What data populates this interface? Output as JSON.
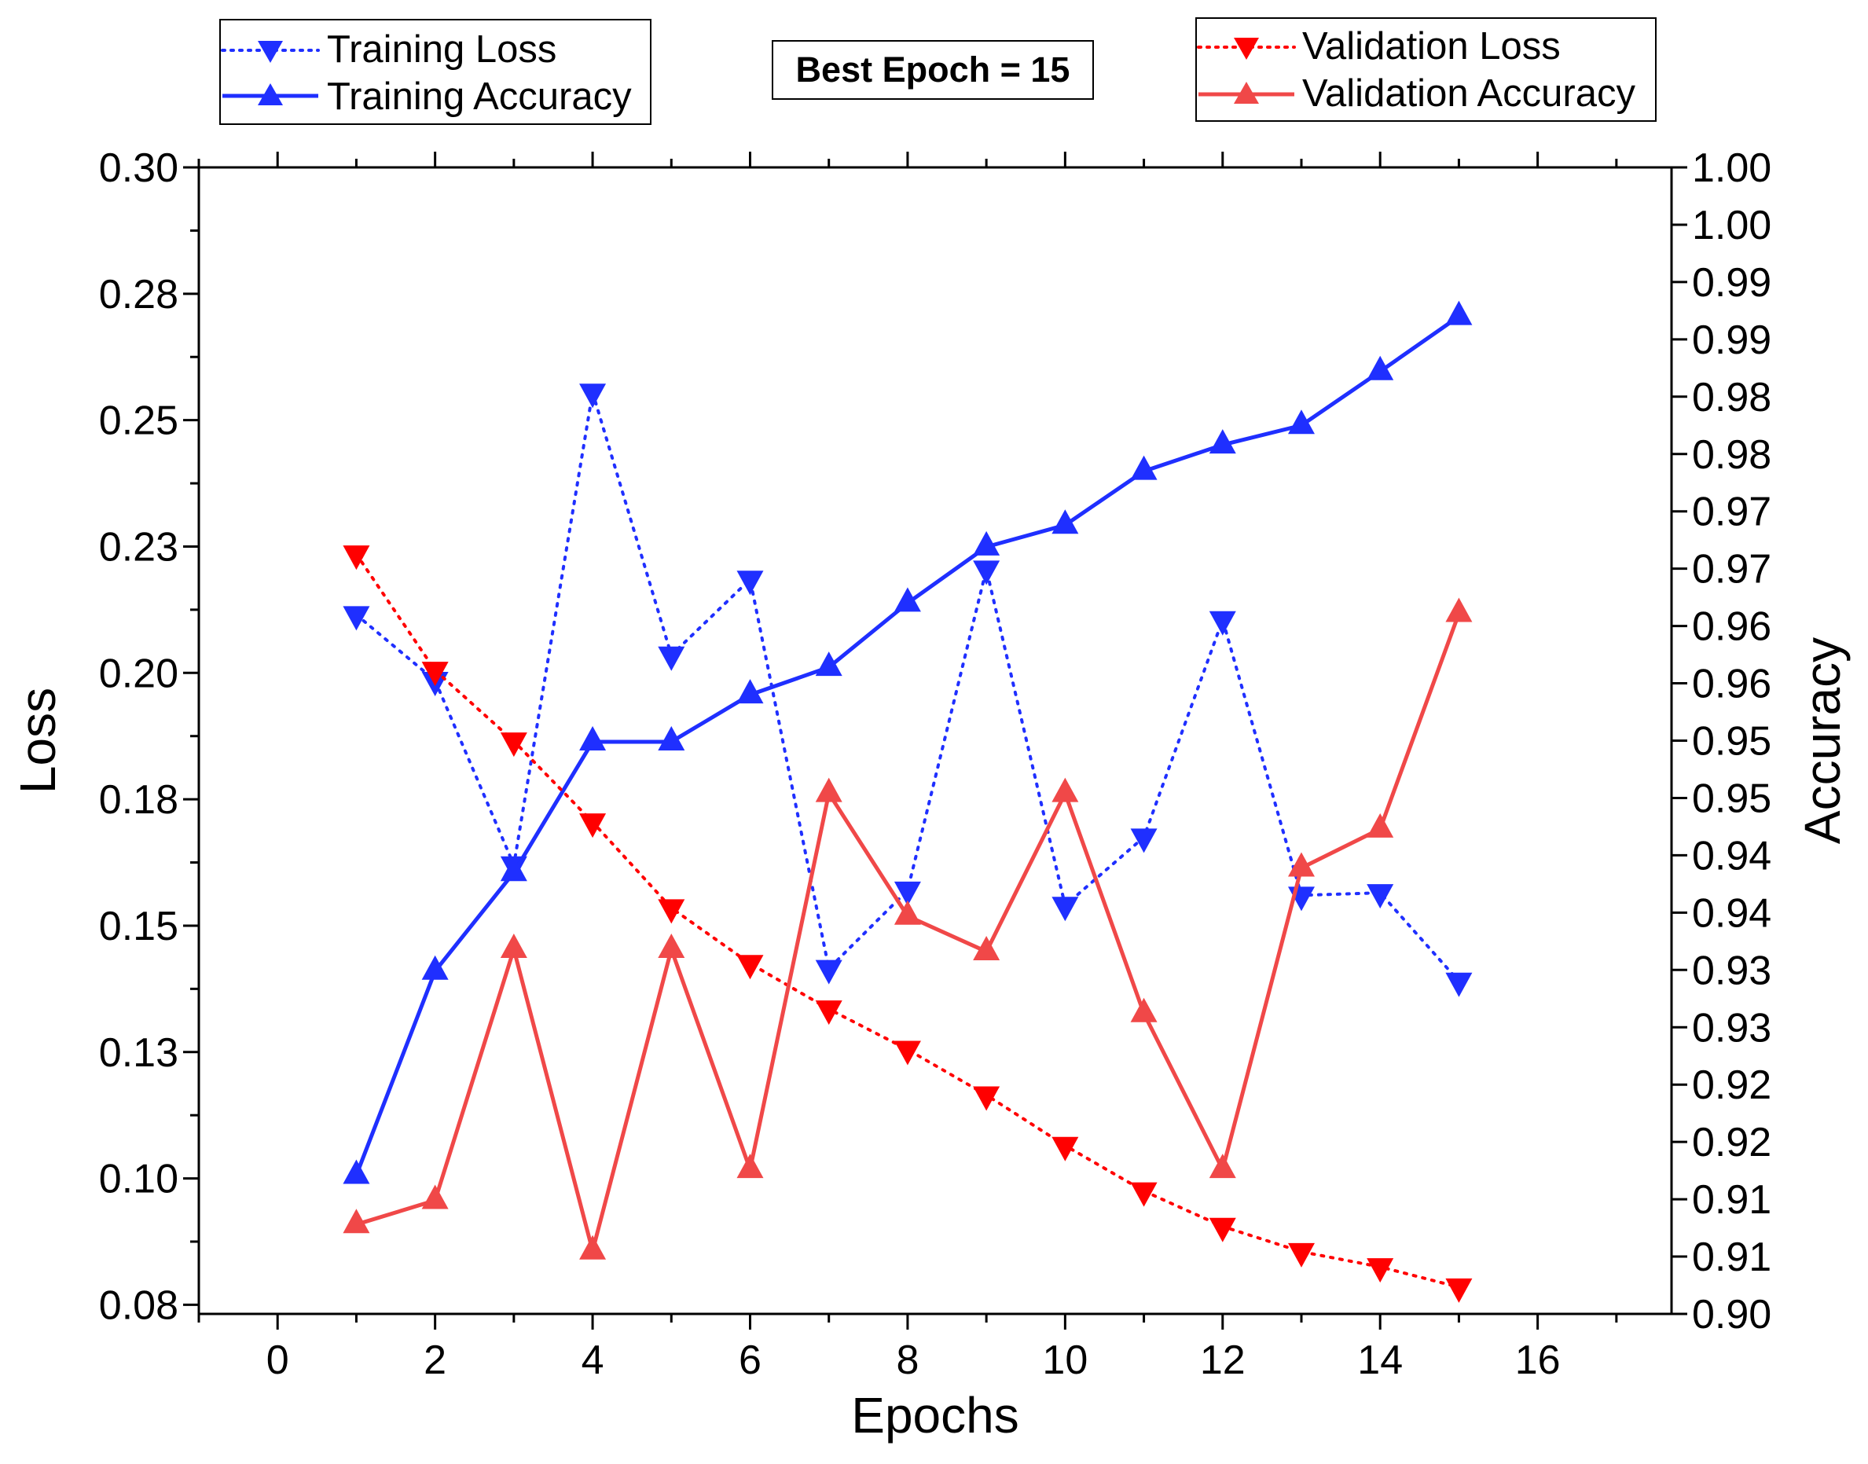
{
  "chart_data": {
    "type": "line",
    "xlabel": "Epochs",
    "ylabel_left": "Loss",
    "ylabel_right": "Accuracy",
    "xlim": [
      -1,
      17.7
    ],
    "ylim_left": [
      0.0732,
      0.3
    ],
    "ylim_right": [
      0.9,
      1.0
    ],
    "x_ticks": [
      0,
      2,
      4,
      6,
      8,
      10,
      12,
      14,
      16
    ],
    "x_tick_labels": [
      "0",
      "2",
      "4",
      "6",
      "8",
      "10",
      "12",
      "14",
      "16"
    ],
    "left_ticks": [
      0.3,
      0.275,
      0.25,
      0.225,
      0.2,
      0.175,
      0.15,
      0.125,
      0.1,
      0.075
    ],
    "left_tick_labels": [
      "0.30",
      "0.28",
      "0.25",
      "0.23",
      "0.20",
      "0.18",
      "0.15",
      "0.13",
      "0.10",
      "0.08"
    ],
    "right_ticks": [
      1.0,
      0.995,
      0.99,
      0.985,
      0.98,
      0.975,
      0.97,
      0.965,
      0.96,
      0.955,
      0.95,
      0.945,
      0.94,
      0.935,
      0.93,
      0.925,
      0.92,
      0.915,
      0.91,
      0.905,
      0.9
    ],
    "right_tick_labels": [
      "1.00",
      "1.00",
      "0.99",
      "0.99",
      "0.98",
      "0.98",
      "0.97",
      "0.97",
      "0.96",
      "0.96",
      "0.95",
      "0.95",
      "0.94",
      "0.94",
      "0.93",
      "0.93",
      "0.92",
      "0.92",
      "0.91",
      "0.91",
      "0.90"
    ],
    "x": [
      1,
      2,
      3,
      4,
      5,
      6,
      7,
      8,
      9,
      10,
      11,
      12,
      13,
      14,
      15
    ],
    "series": [
      {
        "name": "Training Loss",
        "axis": "left",
        "color": "#1f2fff",
        "line": "dotted",
        "marker": "triangle-down",
        "values": [
          0.2115,
          0.1985,
          0.162,
          0.2555,
          0.2035,
          0.2185,
          0.1415,
          0.157,
          0.2205,
          0.154,
          0.1675,
          0.2105,
          0.156,
          0.1565,
          0.139
        ]
      },
      {
        "name": "Training Accuracy",
        "axis": "right",
        "color": "#1f2fff",
        "line": "solid",
        "marker": "triangle-up",
        "values": [
          0.9121,
          0.9299,
          0.9385,
          0.9499,
          0.9499,
          0.954,
          0.9564,
          0.962,
          0.9669,
          0.9688,
          0.9735,
          0.9758,
          0.9775,
          0.9822,
          0.987
        ]
      },
      {
        "name": "Validation Loss",
        "axis": "left",
        "color": "#ff0000",
        "line": "dotted",
        "marker": "triangle-down",
        "values": [
          0.2235,
          0.2005,
          0.1865,
          0.1705,
          0.1535,
          0.1425,
          0.1335,
          0.1255,
          0.1165,
          0.1065,
          0.0975,
          0.0905,
          0.0855,
          0.0825,
          0.0785
        ]
      },
      {
        "name": "Validation Accuracy",
        "axis": "right",
        "color": "#f04848",
        "line": "solid",
        "marker": "triangle-up",
        "values": [
          0.9078,
          0.9099,
          0.9318,
          0.9055,
          0.9318,
          0.9126,
          0.9454,
          0.9347,
          0.9316,
          0.9454,
          0.9262,
          0.9126,
          0.9389,
          0.9423,
          0.9611
        ]
      }
    ],
    "legends": [
      {
        "position": "top-left",
        "entries": [
          "Training Loss",
          "Training Accuracy"
        ]
      },
      {
        "position": "top-right",
        "entries": [
          "Validation Loss",
          "Validation Accuracy"
        ]
      }
    ],
    "annotation": "Best Epoch = 15"
  }
}
